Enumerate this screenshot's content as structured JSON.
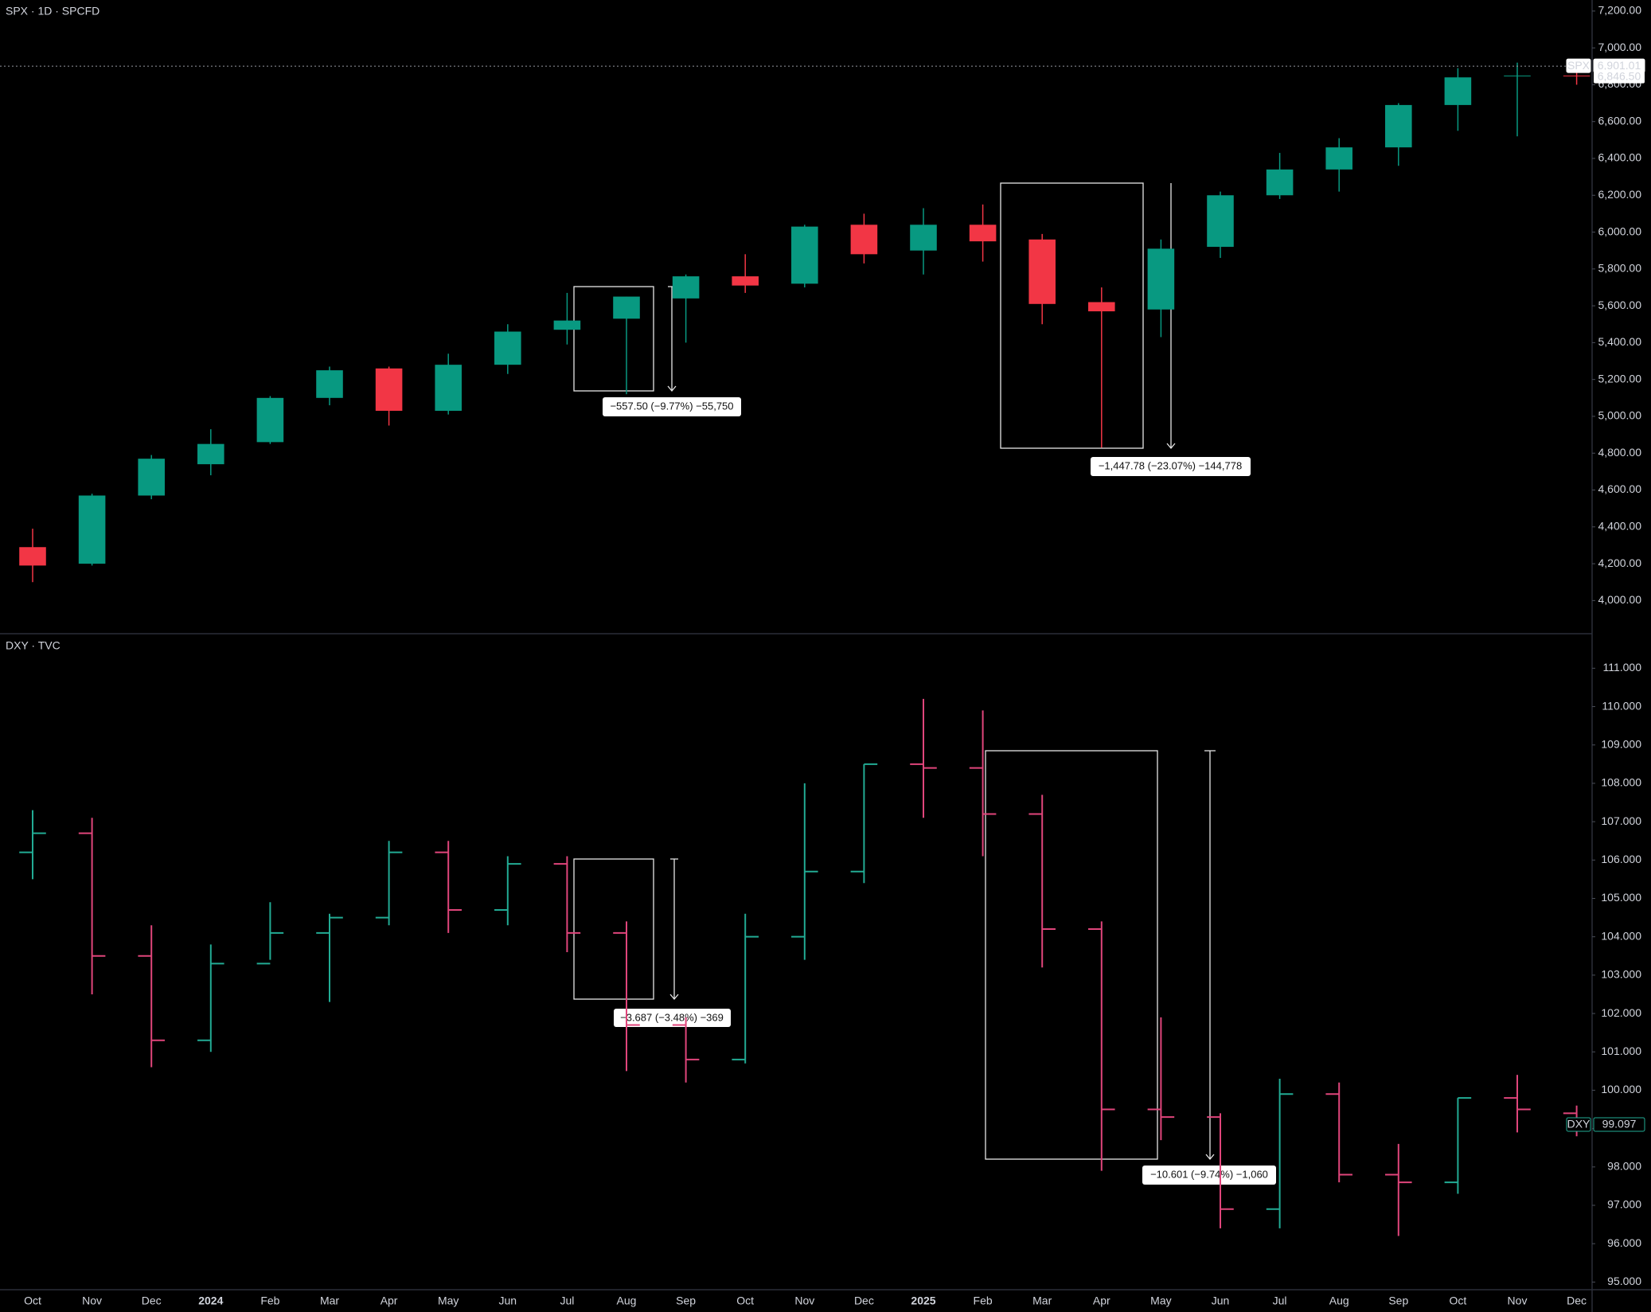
{
  "chart_data": [
    {
      "type": "candlestick",
      "title": "SPX · 1D · SPCFD",
      "open": [
        4290,
        4200,
        4570,
        4740,
        4860,
        5100,
        5260,
        5030,
        5280,
        5470,
        5530,
        5640,
        5760,
        5720,
        6040,
        5900,
        6040,
        5960,
        5620,
        5580,
        5920,
        6200,
        6340,
        6460,
        6690,
        6850,
        6850
      ],
      "high": [
        4390,
        4580,
        4790,
        4930,
        5110,
        5270,
        5270,
        5340,
        5500,
        5670,
        5650,
        5770,
        5880,
        6040,
        6100,
        6130,
        6150,
        5990,
        5700,
        5960,
        6220,
        6430,
        6510,
        6700,
        6890,
        6920,
        6900
      ],
      "low": [
        4100,
        4190,
        4550,
        4680,
        4850,
        5060,
        4950,
        5010,
        5230,
        5390,
        5120,
        5400,
        5670,
        5700,
        5830,
        5770,
        5840,
        5500,
        4830,
        5430,
        5860,
        6180,
        6220,
        6360,
        6550,
        6520,
        6800
      ],
      "close": [
        4190,
        4570,
        4770,
        4850,
        5100,
        5250,
        5030,
        5280,
        5460,
        5520,
        5650,
        5760,
        5710,
        6030,
        5880,
        6040,
        5950,
        5610,
        5570,
        5910,
        6200,
        6340,
        6460,
        6690,
        6840,
        6850,
        6846.5
      ],
      "last_label": "6,846.50",
      "up_color": "#089981",
      "down_color": "#f23645",
      "ylim": [
        3820,
        7260
      ],
      "yticks": [
        {
          "value": 4000,
          "label": "4,000.00"
        },
        {
          "value": 4200,
          "label": "4,200.00"
        },
        {
          "value": 4400,
          "label": "4,400.00"
        },
        {
          "value": 4600,
          "label": "4,600.00"
        },
        {
          "value": 4800,
          "label": "4,800.00"
        },
        {
          "value": 5000,
          "label": "5,000.00"
        },
        {
          "value": 5200,
          "label": "5,200.00"
        },
        {
          "value": 5400,
          "label": "5,400.00"
        },
        {
          "value": 5600,
          "label": "5,600.00"
        },
        {
          "value": 5800,
          "label": "5,800.00"
        },
        {
          "value": 6000,
          "label": "6,000.00"
        },
        {
          "value": 6200,
          "label": "6,200.00"
        },
        {
          "value": 6400,
          "label": "6,400.00"
        },
        {
          "value": 6600,
          "label": "6,600.00"
        },
        {
          "value": 6800,
          "label": "6,800.00"
        },
        {
          "value": 7000,
          "label": "7,000.00"
        },
        {
          "value": 7200,
          "label": "7,200.00"
        }
      ],
      "tags": [
        {
          "name": "SPX",
          "value": 6901.01,
          "label": "6,901.01"
        }
      ],
      "annotations": [
        "−557.50 (−9.77%) −55,750",
        "−1,447.78 (−23.07%) −144,778"
      ]
    },
    {
      "type": "ohlc",
      "title": "DXY · TVC",
      "categories": [
        "Oct",
        "Nov",
        "Dec",
        "2024",
        "Feb",
        "Mar",
        "Apr",
        "May",
        "Jun",
        "Jul",
        "Aug",
        "Sep",
        "Oct",
        "Nov",
        "Dec",
        "2025",
        "Feb",
        "Mar",
        "Apr",
        "May",
        "Jun",
        "Jul",
        "Aug",
        "Sep",
        "Oct",
        "Nov",
        "Dec"
      ],
      "open": [
        106.2,
        106.7,
        103.5,
        101.3,
        103.3,
        104.1,
        104.5,
        106.2,
        104.7,
        105.9,
        104.1,
        101.7,
        100.8,
        104.0,
        105.7,
        108.5,
        108.4,
        107.2,
        104.2,
        99.5,
        99.3,
        96.9,
        99.9,
        97.8,
        97.6,
        99.8,
        99.4
      ],
      "high": [
        107.3,
        107.1,
        104.3,
        103.8,
        104.9,
        104.6,
        106.5,
        106.5,
        106.1,
        106.1,
        104.4,
        101.9,
        104.6,
        108.0,
        108.5,
        110.2,
        109.9,
        107.7,
        104.4,
        101.9,
        99.4,
        100.3,
        100.2,
        98.6,
        99.8,
        100.4,
        99.6
      ],
      "low": [
        105.5,
        102.5,
        100.6,
        101.0,
        103.4,
        102.3,
        104.3,
        104.1,
        104.3,
        103.6,
        100.5,
        100.2,
        100.7,
        103.4,
        105.4,
        107.1,
        106.1,
        103.2,
        97.9,
        98.7,
        96.4,
        96.4,
        97.6,
        96.2,
        97.3,
        98.9,
        98.8
      ],
      "close": [
        106.7,
        103.5,
        101.3,
        103.3,
        104.1,
        104.5,
        106.2,
        104.7,
        105.9,
        104.1,
        101.7,
        100.8,
        104.0,
        105.7,
        108.5,
        108.4,
        107.2,
        104.2,
        99.5,
        99.3,
        96.9,
        99.9,
        97.8,
        97.6,
        99.8,
        99.5,
        99.097
      ],
      "up_color": "#22ab94",
      "down_color": "#e0457b",
      "ylim": [
        94.8,
        111.9
      ],
      "yticks": [
        {
          "value": 95,
          "label": "95.000"
        },
        {
          "value": 96,
          "label": "96.000"
        },
        {
          "value": 97,
          "label": "97.000"
        },
        {
          "value": 98,
          "label": "98.000"
        },
        {
          "value": 99,
          "label": "99.000"
        },
        {
          "value": 100,
          "label": "100.000"
        },
        {
          "value": 101,
          "label": "101.000"
        },
        {
          "value": 102,
          "label": "102.000"
        },
        {
          "value": 103,
          "label": "103.000"
        },
        {
          "value": 104,
          "label": "104.000"
        },
        {
          "value": 105,
          "label": "105.000"
        },
        {
          "value": 106,
          "label": "106.000"
        },
        {
          "value": 107,
          "label": "107.000"
        },
        {
          "value": 108,
          "label": "108.000"
        },
        {
          "value": 109,
          "label": "109.000"
        },
        {
          "value": 110,
          "label": "110.000"
        },
        {
          "value": 111,
          "label": "111.000"
        }
      ],
      "tags": [
        {
          "name": "DXY",
          "value": 99.097,
          "label": "99.097"
        }
      ],
      "annotations": [
        "−3.687 (−3.48%) −369",
        "−10.601 (−9.74%) −1,060"
      ]
    }
  ]
}
